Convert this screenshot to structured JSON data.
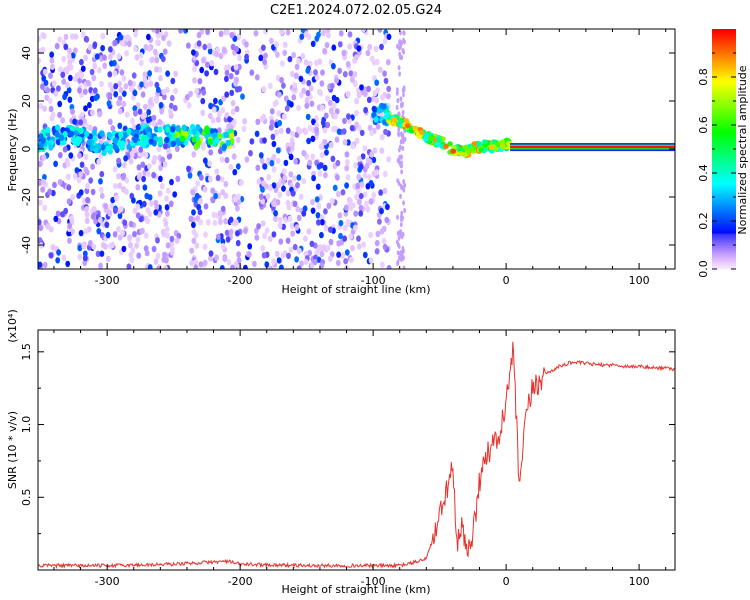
{
  "title": "C2E1.2024.072.02.05.G24",
  "chart_data": [
    {
      "type": "heatmap",
      "title": "C2E1.2024.072.02.05.G24",
      "xlabel": "Height of straight line (km)",
      "ylabel": "Frequency (Hz)",
      "xlim": [
        -352,
        127
      ],
      "ylim": [
        -50,
        50
      ],
      "x_ticks": [
        -300,
        -200,
        -100,
        0,
        100
      ],
      "y_ticks": [
        -40,
        -20,
        0,
        20,
        40
      ],
      "colorbar": {
        "label": "Normalized spectral amplitude",
        "range": [
          0.0,
          1.0
        ],
        "ticks": [
          "0.0",
          "0.2",
          "0.4",
          "0.6",
          "0.8"
        ]
      },
      "features": {
        "noise_region_x": [
          -352,
          -88
        ],
        "sparse_strip_x": [
          -82,
          -76
        ],
        "gap_regions_x": [
          [
            -250,
            -238
          ],
          [
            -200,
            -185
          ]
        ],
        "signal_track": [
          [
            -352,
            3
          ],
          [
            -330,
            6
          ],
          [
            -300,
            2
          ],
          [
            -280,
            5
          ],
          [
            -250,
            6
          ],
          [
            -230,
            5
          ],
          [
            -205,
            4
          ],
          [
            -100,
            15
          ],
          [
            -90,
            14
          ],
          [
            -80,
            11
          ],
          [
            -70,
            9
          ],
          [
            -60,
            5
          ],
          [
            -50,
            3
          ],
          [
            -40,
            0
          ],
          [
            -30,
            -1
          ],
          [
            -20,
            1
          ],
          [
            -10,
            1
          ],
          [
            0,
            2
          ],
          [
            10,
            1
          ],
          [
            127,
            1
          ]
        ],
        "flat_line_x": [
          3,
          127
        ],
        "flat_line_y": 0.8
      }
    },
    {
      "type": "line",
      "xlabel": "Height of straight line (km)",
      "ylabel": "SNR (10 * v/v)",
      "y_multiplier": "(x10⁴)",
      "xlim": [
        -352,
        127
      ],
      "ylim": [
        0,
        1.65
      ],
      "x_ticks": [
        -300,
        -200,
        -100,
        0,
        100
      ],
      "y_ticks": [
        0.5,
        1.0,
        1.5
      ],
      "y_tick_labels": [
        "0.5",
        "1.0",
        "1.5"
      ],
      "series": [
        {
          "color": "#e8322e",
          "x": [
            -352,
            -300,
            -250,
            -230,
            -210,
            -200,
            -150,
            -100,
            -80,
            -70,
            -60,
            -50,
            -45,
            -40,
            -37,
            -33,
            -30,
            -26,
            -22,
            -18,
            -14,
            -10,
            -6,
            -2,
            0,
            5,
            8,
            10,
            15,
            20,
            25,
            30,
            40,
            50,
            60,
            70,
            80,
            90,
            100,
            110,
            120,
            127
          ],
          "y": [
            0.03,
            0.03,
            0.04,
            0.05,
            0.06,
            0.04,
            0.03,
            0.03,
            0.03,
            0.05,
            0.08,
            0.35,
            0.55,
            0.7,
            0.15,
            0.3,
            0.12,
            0.22,
            0.45,
            0.75,
            0.8,
            0.85,
            0.9,
            1.05,
            1.15,
            1.5,
            1.0,
            0.55,
            1.05,
            1.25,
            1.3,
            1.35,
            1.4,
            1.43,
            1.42,
            1.41,
            1.41,
            1.4,
            1.4,
            1.39,
            1.39,
            1.38
          ]
        }
      ]
    }
  ]
}
